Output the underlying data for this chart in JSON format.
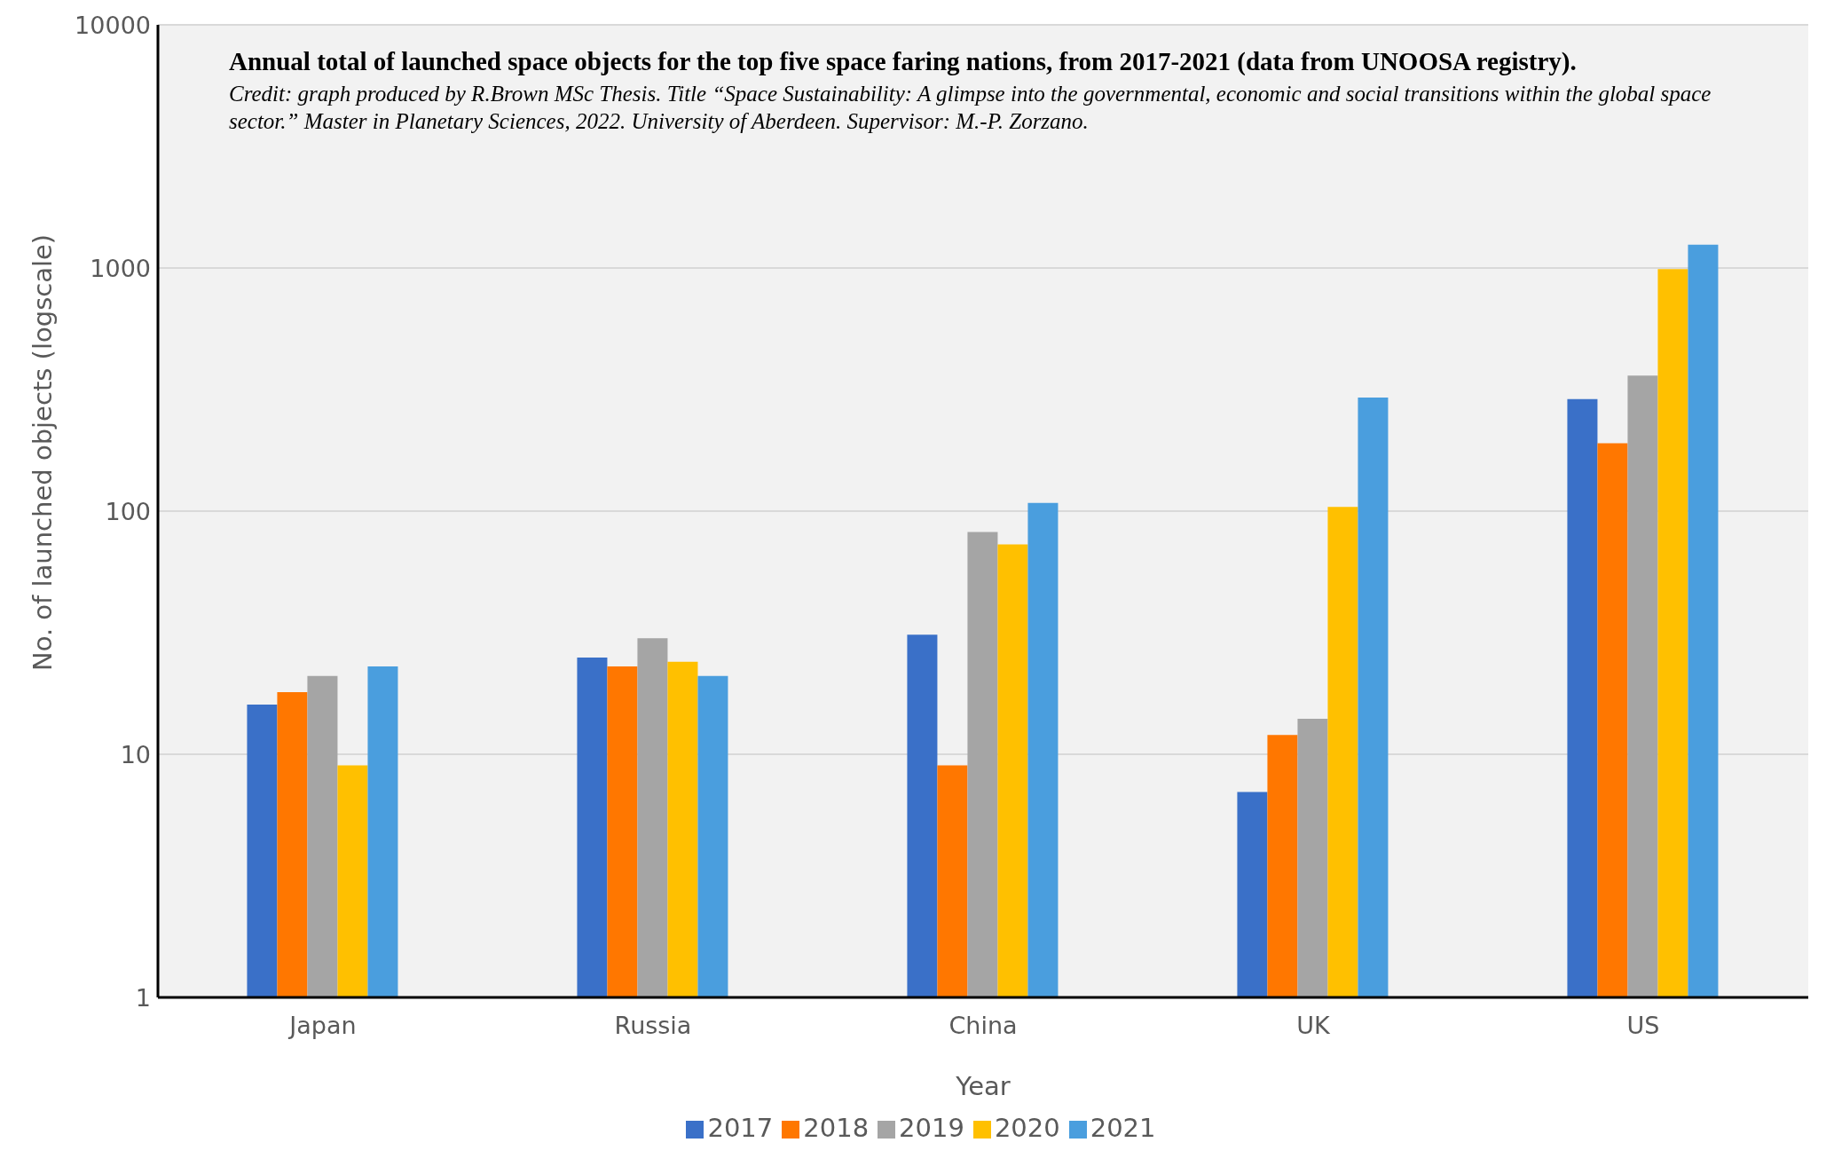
{
  "chart_data": {
    "type": "bar",
    "title": "Annual total of launched space objects for the top five space faring nations, from 2017-2021 (data from UNOOSA registry).",
    "subtitle": "Credit: graph produced by R.Brown MSc Thesis. Title “Space Sustainability: A glimpse into the governmental, economic and social transitions within the global space sector.” Master in Planetary Sciences, 2022. University of Aberdeen. Supervisor: M.-P. Zorzano.",
    "xlabel": "Year",
    "ylabel": "No. of launched objects (logscale)",
    "categories": [
      "Japan",
      "Russia",
      "China",
      "UK",
      "US"
    ],
    "series": [
      {
        "name": "2017",
        "color": "#3a70c8",
        "values": [
          16,
          25,
          31,
          7,
          289
        ]
      },
      {
        "name": "2018",
        "color": "#ff7700",
        "values": [
          18,
          23,
          9,
          12,
          190
        ]
      },
      {
        "name": "2019",
        "color": "#a5a5a5",
        "values": [
          21,
          30,
          82,
          14,
          361
        ]
      },
      {
        "name": "2020",
        "color": "#ffc000",
        "values": [
          9,
          24,
          73,
          104,
          989
        ]
      },
      {
        "name": "2021",
        "color": "#4a9ede",
        "values": [
          23,
          21,
          108,
          293,
          1248
        ]
      }
    ],
    "log": "y",
    "ylim": [
      1,
      10000
    ],
    "yticks": [
      1,
      10,
      100,
      1000,
      10000
    ],
    "grid": "y",
    "legend": "bottom"
  }
}
